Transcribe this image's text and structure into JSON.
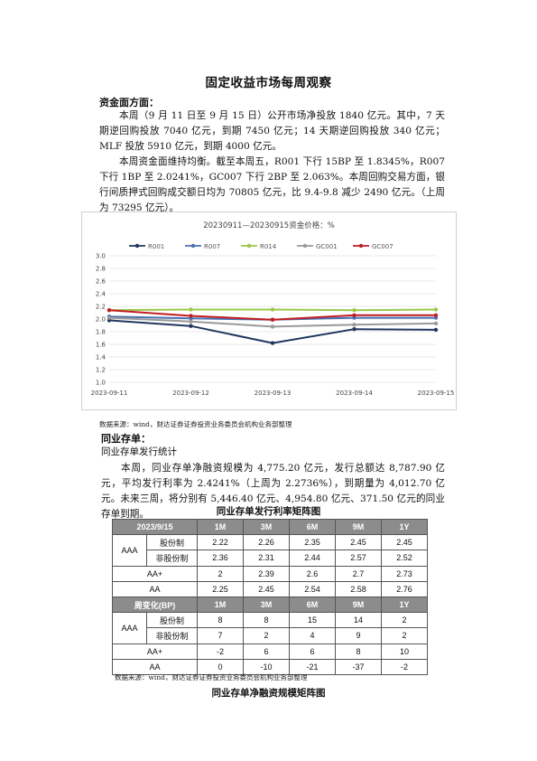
{
  "title": "固定收益市场每周观察",
  "money": {
    "heading": "资金面方面：",
    "p1": "本周（9 月 11 日至 9 月 15 日）公开市场净投放 1840 亿元。其中，7 天期逆回购投放 7040 亿元，到期 7450 亿元；14 天期逆回购投放 340 亿元；MLF 投放 5910 亿元，到期 4000 亿元。",
    "p2": "本周资金面维持均衡。截至本周五，R001 下行 15BP 至 1.8345%，R007 下行 1BP 至 2.0241%，GC007 下行 2BP 至 2.063%。本周回购交易方面，银行间质押式回购成交额日均为 70805 亿元，比 9.4-9.8 减少 2490 亿元。（上周为 73295 亿元）。"
  },
  "chart_source": "数据来源：wind，财达证券证券投资业务委员会机构业务部整理",
  "chart_data": {
    "type": "line",
    "title": "20230911—20230915资金价格：%",
    "xlabel": "",
    "ylabel": "",
    "categories": [
      "2023-09-11",
      "2023-09-12",
      "2023-09-13",
      "2023-09-14",
      "2023-09-15"
    ],
    "yticks": [
      "1.0",
      "1.2",
      "1.4",
      "1.6",
      "1.8",
      "2.0",
      "2.2",
      "2.4",
      "2.6",
      "2.8",
      "3.0"
    ],
    "ylim": [
      1.0,
      3.0
    ],
    "grid": true,
    "legend": "top",
    "series": [
      {
        "name": "R001",
        "color": "#22365f",
        "values": [
          1.98,
          1.89,
          1.62,
          1.84,
          1.83
        ]
      },
      {
        "name": "R007",
        "color": "#4a72b2",
        "values": [
          2.04,
          2.01,
          1.99,
          2.02,
          2.02
        ]
      },
      {
        "name": "R014",
        "color": "#9bc74a",
        "values": [
          2.14,
          2.15,
          2.15,
          2.14,
          2.15
        ]
      },
      {
        "name": "GC001",
        "color": "#9a9a9a",
        "values": [
          2.02,
          1.96,
          1.88,
          1.91,
          1.93
        ]
      },
      {
        "name": "GC007",
        "color": "#c01e25",
        "values": [
          2.14,
          2.05,
          1.99,
          2.06,
          2.06
        ]
      }
    ]
  },
  "ncd": {
    "heading": "同业存单：",
    "subheading": "同业存单发行统计",
    "p1": "本周，同业存单净融资规模为 4,775.20 亿元，发行总额达 8,787.90 亿元，平均发行利率为 2.4241%（上周为 2.2736%），到期量为 4,012.70 亿元。未来三周，将分别有 5,446.40 亿元、4,954.80 亿元、371.50 亿元的同业存单到期。"
  },
  "matrix": {
    "title": "同业存单发行利率矩阵图",
    "top_header": [
      "2023/9/15",
      "1M",
      "3M",
      "6M",
      "9M",
      "1Y"
    ],
    "aaa_label": "AAA",
    "top_rows": [
      {
        "label": "股份制",
        "values": [
          "2.22",
          "2.26",
          "2.35",
          "2.45",
          "2.45"
        ]
      },
      {
        "label": "非股份制",
        "values": [
          "2.36",
          "2.31",
          "2.44",
          "2.57",
          "2.52"
        ]
      },
      {
        "label": "AA+",
        "values": [
          "2",
          "2.39",
          "2.6",
          "2.7",
          "2.73"
        ]
      },
      {
        "label": "AA",
        "values": [
          "2.25",
          "2.45",
          "2.54",
          "2.58",
          "2.76"
        ]
      }
    ],
    "bottom_header": [
      "周变化(BP)",
      "1M",
      "3M",
      "6M",
      "9M",
      "1Y"
    ],
    "bottom_rows": [
      {
        "label": "股份制",
        "values": [
          "8",
          "8",
          "15",
          "14",
          "2"
        ]
      },
      {
        "label": "非股份制",
        "values": [
          "7",
          "2",
          "4",
          "9",
          "2"
        ]
      },
      {
        "label": "AA+",
        "values": [
          "-2",
          "6",
          "6",
          "8",
          "10"
        ]
      },
      {
        "label": "AA",
        "values": [
          "0",
          "-10",
          "-21",
          "-37",
          "-2"
        ]
      }
    ],
    "source": "数据来源：wind，财达证券证券投资业务委员会机构业务部整理"
  },
  "next_title": "同业存单净融资规模矩阵图"
}
